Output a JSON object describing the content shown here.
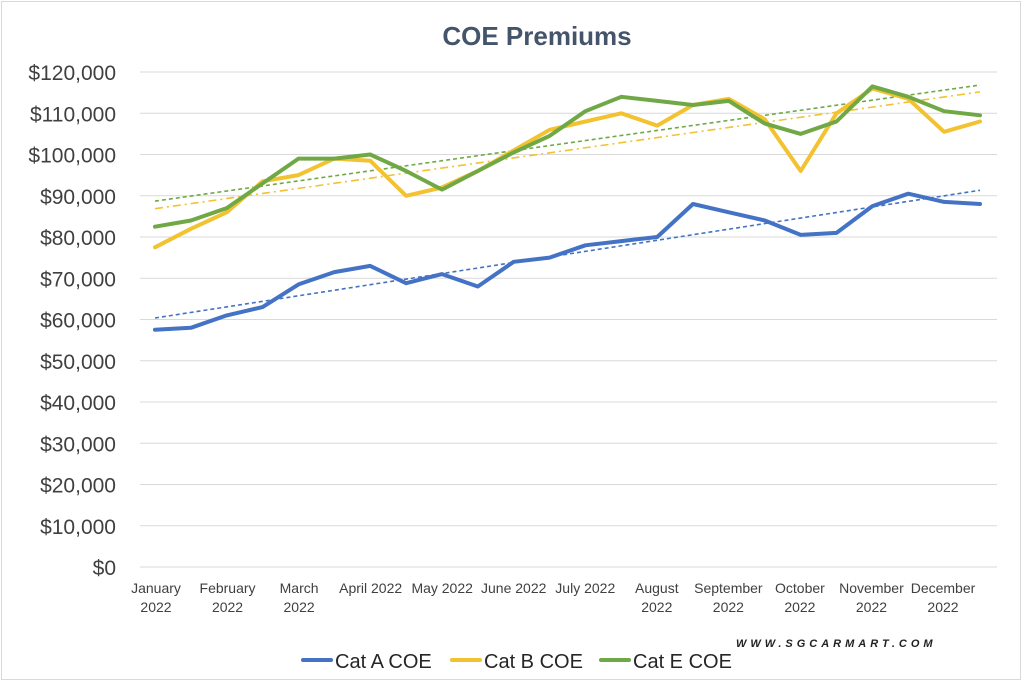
{
  "chart_data": {
    "type": "line",
    "title": "COE Premiums",
    "xlabel": "",
    "ylabel": "",
    "ylim": [
      0,
      120000
    ],
    "ytick_step": 10000,
    "ytick_labels": [
      "$0",
      "$10,000",
      "$20,000",
      "$30,000",
      "$40,000",
      "$50,000",
      "$60,000",
      "$70,000",
      "$80,000",
      "$90,000",
      "$100,000",
      "$110,000",
      "$120,000"
    ],
    "x_tick_labels": [
      {
        "line1": "January",
        "line2": "2022"
      },
      {
        "line1": "February",
        "line2": "2022"
      },
      {
        "line1": "March",
        "line2": "2022"
      },
      {
        "line1": "April 2022",
        "line2": ""
      },
      {
        "line1": "May 2022",
        "line2": ""
      },
      {
        "line1": "June 2022",
        "line2": ""
      },
      {
        "line1": "July 2022",
        "line2": ""
      },
      {
        "line1": "August",
        "line2": "2022"
      },
      {
        "line1": "September",
        "line2": "2022"
      },
      {
        "line1": "October",
        "line2": "2022"
      },
      {
        "line1": "November",
        "line2": "2022"
      },
      {
        "line1": "December",
        "line2": "2022"
      }
    ],
    "series": [
      {
        "name": "Cat A COE",
        "color": "#4472c4",
        "trend_style": "dashed",
        "values": [
          57500,
          58000,
          61000,
          63000,
          68500,
          71500,
          73000,
          68800,
          71000,
          68000,
          74000,
          75000,
          78000,
          79000,
          80000,
          88000,
          86000,
          84000,
          80500,
          81000,
          87500,
          90500,
          88500,
          88000
        ]
      },
      {
        "name": "Cat B COE",
        "color": "#f2c230",
        "trend_style": "dashdot",
        "values": [
          77500,
          82000,
          86000,
          93500,
          95000,
          99000,
          98500,
          90000,
          92000,
          96000,
          101000,
          106000,
          108000,
          110000,
          107000,
          112000,
          113500,
          108500,
          96000,
          110000,
          116000,
          113500,
          105500,
          108000
        ]
      },
      {
        "name": "Cat E COE",
        "color": "#70a845",
        "trend_style": "dashed",
        "values": [
          82500,
          84000,
          87000,
          93000,
          99000,
          99000,
          100000,
          96000,
          91500,
          96000,
          100500,
          104500,
          110500,
          114000,
          113000,
          112000,
          113000,
          107500,
          105000,
          108000,
          116500,
          114000,
          110500,
          109500
        ]
      }
    ],
    "legend_position": "bottom",
    "grid": true
  },
  "watermark": "WWW.SGCARMART.COM"
}
